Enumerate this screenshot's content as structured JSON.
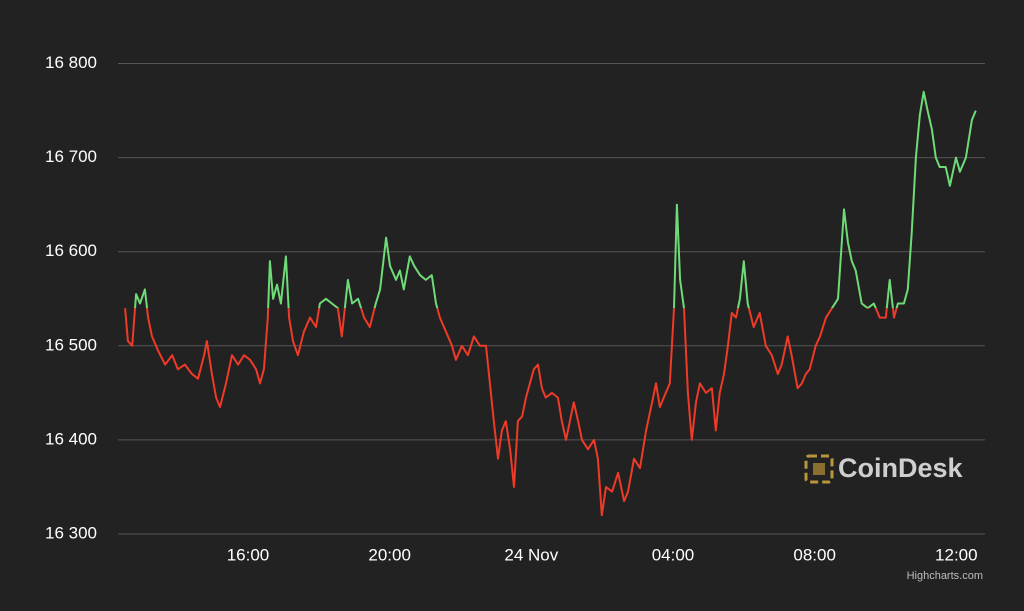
{
  "chart_data": {
    "type": "line",
    "x": [
      12.53,
      12.61,
      12.73,
      12.84,
      12.95,
      13.09,
      13.18,
      13.29,
      13.46,
      13.66,
      13.86,
      14.02,
      14.22,
      14.42,
      14.59,
      14.76,
      14.84,
      14.98,
      15.1,
      15.21,
      15.38,
      15.55,
      15.72,
      15.89,
      16.06,
      16.23,
      16.34,
      16.45,
      16.56,
      16.62,
      16.71,
      16.82,
      16.93,
      17.07,
      17.16,
      17.27,
      17.41,
      17.58,
      17.75,
      17.92,
      18.03,
      18.2,
      18.37,
      18.54,
      18.65,
      18.82,
      18.94,
      19.11,
      19.28,
      19.44,
      19.61,
      19.73,
      19.9,
      20.01,
      20.18,
      20.29,
      20.4,
      20.57,
      20.69,
      20.86,
      21.02,
      21.19,
      21.31,
      21.42,
      21.59,
      21.76,
      21.87,
      22.04,
      22.21,
      22.38,
      22.55,
      22.72,
      22.83,
      22.94,
      23.06,
      23.17,
      23.28,
      23.4,
      23.51,
      23.62,
      23.74,
      23.85,
      23.96,
      24.07,
      24.19,
      24.3,
      24.41,
      24.58,
      24.75,
      24.86,
      24.98,
      25.09,
      25.2,
      25.32,
      25.43,
      25.6,
      25.77,
      25.88,
      25.99,
      26.11,
      26.28,
      26.45,
      26.62,
      26.73,
      26.9,
      27.07,
      27.24,
      27.41,
      27.52,
      27.63,
      27.74,
      27.91,
      28.03,
      28.11,
      28.2,
      28.31,
      28.42,
      28.53,
      28.65,
      28.76,
      28.93,
      29.1,
      29.21,
      29.32,
      29.44,
      29.55,
      29.66,
      29.78,
      29.89,
      30.0,
      30.11,
      30.28,
      30.45,
      30.62,
      30.79,
      30.96,
      31.07,
      31.24,
      31.35,
      31.52,
      31.64,
      31.75,
      31.86,
      32.03,
      32.15,
      32.32,
      32.49,
      32.66,
      32.83,
      32.94,
      33.05,
      33.16,
      33.33,
      33.5,
      33.67,
      33.84,
      34.01,
      34.12,
      34.24,
      34.35,
      34.52,
      34.63,
      34.74,
      34.86,
      34.97,
      35.08,
      35.19,
      35.31,
      35.42,
      35.53,
      35.7,
      35.82,
      35.99,
      36.1,
      36.27,
      36.44,
      36.55
    ],
    "values": [
      16540,
      16505,
      16500,
      16555,
      16545,
      16560,
      16530,
      16510,
      16495,
      16480,
      16490,
      16475,
      16480,
      16470,
      16465,
      16490,
      16505,
      16470,
      16445,
      16435,
      16460,
      16490,
      16480,
      16490,
      16485,
      16475,
      16460,
      16475,
      16530,
      16590,
      16550,
      16565,
      16545,
      16595,
      16530,
      16505,
      16490,
      16515,
      16530,
      16520,
      16545,
      16550,
      16545,
      16540,
      16510,
      16570,
      16545,
      16550,
      16530,
      16520,
      16545,
      16560,
      16615,
      16585,
      16570,
      16580,
      16560,
      16595,
      16585,
      16575,
      16570,
      16575,
      16545,
      16530,
      16515,
      16500,
      16485,
      16500,
      16490,
      16510,
      16500,
      16500,
      16460,
      16420,
      16380,
      16410,
      16420,
      16390,
      16350,
      16420,
      16425,
      16445,
      16460,
      16475,
      16480,
      16455,
      16445,
      16450,
      16445,
      16420,
      16400,
      16420,
      16440,
      16420,
      16400,
      16390,
      16400,
      16380,
      16320,
      16350,
      16345,
      16365,
      16335,
      16345,
      16380,
      16370,
      16410,
      16440,
      16460,
      16435,
      16445,
      16460,
      16540,
      16650,
      16570,
      16540,
      16450,
      16400,
      16440,
      16460,
      16450,
      16455,
      16410,
      16450,
      16470,
      16500,
      16535,
      16530,
      16550,
      16590,
      16545,
      16520,
      16535,
      16500,
      16490,
      16470,
      16480,
      16510,
      16490,
      16455,
      16460,
      16470,
      16475,
      16500,
      16510,
      16530,
      16540,
      16550,
      16645,
      16610,
      16590,
      16580,
      16545,
      16540,
      16545,
      16530,
      16530,
      16570,
      16530,
      16545,
      16545,
      16560,
      16620,
      16700,
      16745,
      16770,
      16750,
      16730,
      16700,
      16690,
      16690,
      16670,
      16700,
      16685,
      16700,
      16740,
      16750
    ],
    "threshold": 16540,
    "color_above": "#6fdb78",
    "color_below": "#ee3b28",
    "xlim": [
      12.33,
      36.81
    ],
    "xticks": [
      {
        "value": 16,
        "label": "16:00"
      },
      {
        "value": 20,
        "label": "20:00"
      },
      {
        "value": 24,
        "label": "24 Nov"
      },
      {
        "value": 28,
        "label": "04:00"
      },
      {
        "value": 32,
        "label": "08:00"
      },
      {
        "value": 36,
        "label": "12:00"
      }
    ],
    "ylim": [
      16300,
      16825
    ],
    "yticks": [
      {
        "value": 16300,
        "label": "16 300"
      },
      {
        "value": 16400,
        "label": "16 400"
      },
      {
        "value": 16500,
        "label": "16 500"
      },
      {
        "value": 16600,
        "label": "16 600"
      },
      {
        "value": 16700,
        "label": "16 700"
      },
      {
        "value": 16800,
        "label": "16 800"
      }
    ],
    "grid": true,
    "watermark": "CoinDesk",
    "credit": "Highcharts.com"
  }
}
